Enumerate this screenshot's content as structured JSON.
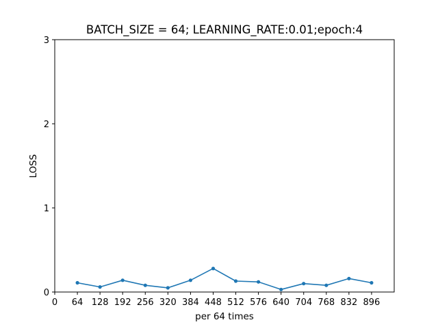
{
  "chart_data": {
    "type": "line",
    "title": "BATCH_SIZE = 64; LEARNING_RATE:0.01;epoch:4",
    "xlabel": "per 64 times",
    "ylabel": "LOSS",
    "xlim": [
      0,
      960
    ],
    "ylim": [
      0,
      3
    ],
    "xticks": [
      0,
      64,
      128,
      192,
      256,
      320,
      384,
      448,
      512,
      576,
      640,
      704,
      768,
      832,
      896
    ],
    "yticks": [
      0,
      1,
      2,
      3
    ],
    "grid": false,
    "legend": false,
    "series": [
      {
        "color": "#1f77b4",
        "marker": "circle",
        "x": [
          64,
          128,
          192,
          256,
          320,
          384,
          448,
          512,
          576,
          640,
          704,
          768,
          832,
          896
        ],
        "y": [
          0.11,
          0.06,
          0.14,
          0.08,
          0.05,
          0.14,
          0.28,
          0.13,
          0.12,
          0.03,
          0.1,
          0.08,
          0.16,
          0.11
        ]
      }
    ]
  }
}
